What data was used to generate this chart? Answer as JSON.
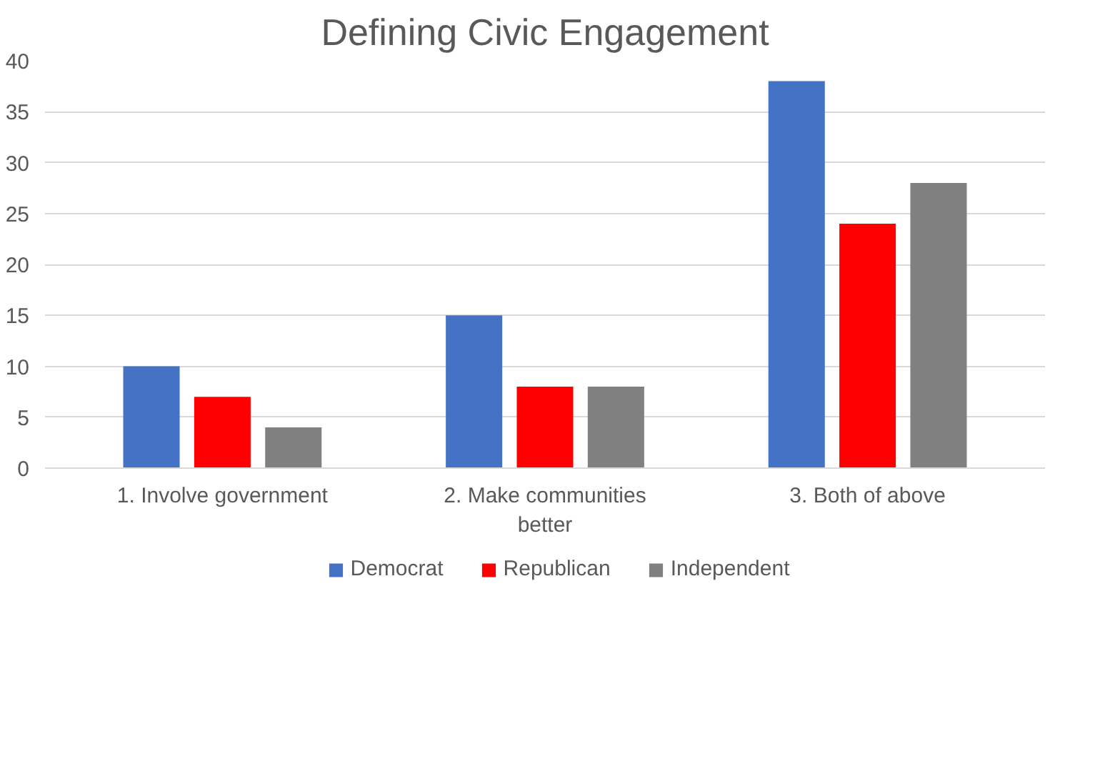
{
  "chart_data": {
    "type": "bar",
    "title": "Defining Civic Engagement",
    "categories": [
      "1. Involve government",
      "2. Make communities better",
      "3. Both of above"
    ],
    "series": [
      {
        "name": "Democrat",
        "color": "#4472c4",
        "values": [
          10,
          15,
          38
        ]
      },
      {
        "name": "Republican",
        "color": "#ff0000",
        "values": [
          7,
          8,
          24
        ]
      },
      {
        "name": "Independent",
        "color": "#808080",
        "values": [
          4,
          8,
          28
        ]
      }
    ],
    "ylim": [
      0,
      40
    ],
    "yticks": [
      0,
      5,
      10,
      15,
      20,
      25,
      30,
      35,
      40
    ],
    "grid": "y",
    "legend": "bottom"
  }
}
